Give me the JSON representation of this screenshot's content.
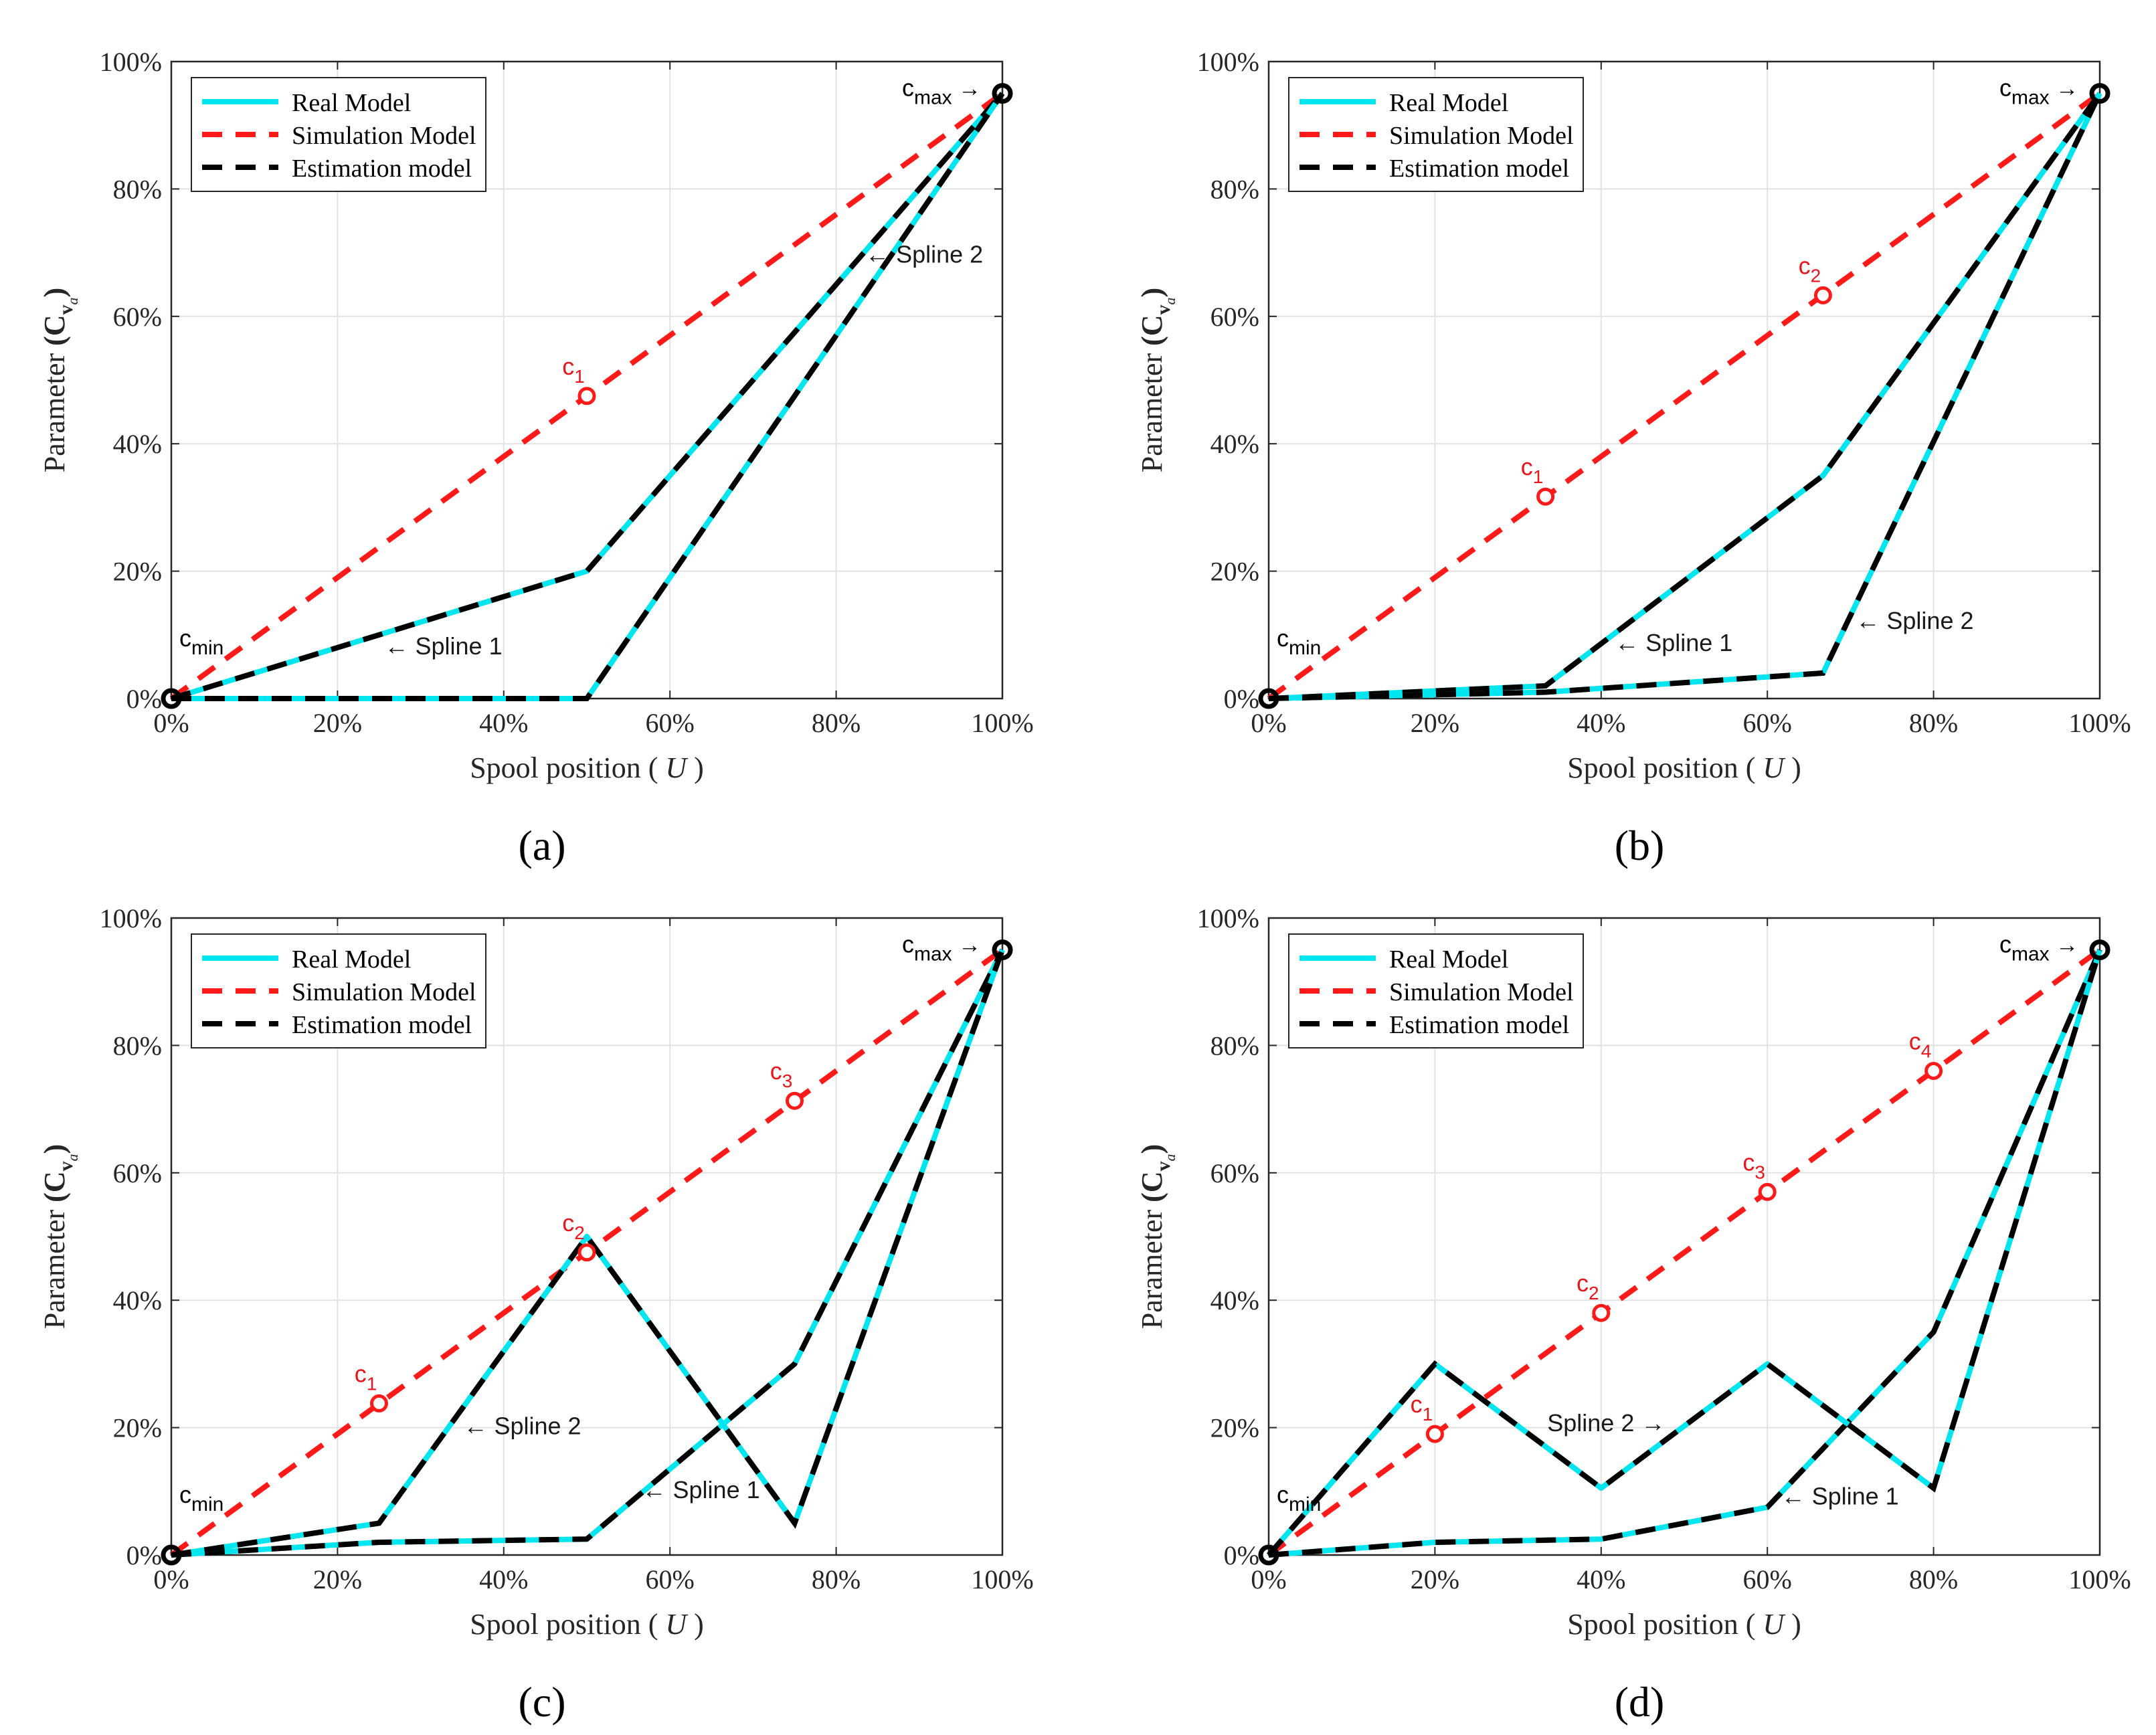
{
  "figure": {
    "colors": {
      "real": "#00e5ee",
      "simulation": "#ff1a1a",
      "estimation": "#000000",
      "grid": "#e2e2e2",
      "axis": "#262626",
      "point_label": "#e8151b"
    }
  },
  "chart_data": [
    {
      "panel": "(a)",
      "type": "line",
      "xlabel": "Spool position",
      "xlabel_var": "U",
      "ylabel": "Parameter",
      "ylabel_symbol": "(C",
      "ylabel_sub": "v",
      "ylabel_subsub": "a",
      "ylabel_close": ")",
      "xlim": [
        0,
        100
      ],
      "ylim": [
        0,
        100
      ],
      "xticks": [
        0,
        20,
        40,
        60,
        80,
        100
      ],
      "yticks": [
        0,
        20,
        40,
        60,
        80,
        100
      ],
      "tick_labels_x": [
        "0%",
        "20%",
        "40%",
        "60%",
        "80%",
        "100%"
      ],
      "tick_labels_y": [
        "0%",
        "20%",
        "40%",
        "60%",
        "80%",
        "100%"
      ],
      "grid": true,
      "legend": {
        "position": "top-left",
        "entries": [
          {
            "label": "Real Model",
            "style": "solid",
            "color": "real"
          },
          {
            "label": "Simulation Model",
            "style": "dashed",
            "color": "simulation"
          },
          {
            "label": "Estimation model",
            "style": "dashed",
            "color": "estimation"
          }
        ]
      },
      "series": [
        {
          "name": "Simulation Model",
          "x": [
            0,
            100
          ],
          "y": [
            0,
            95
          ]
        },
        {
          "name": "Spline 1",
          "x": [
            0,
            50,
            100
          ],
          "y": [
            0,
            20,
            95
          ]
        },
        {
          "name": "Spline 2",
          "x": [
            0,
            50,
            100
          ],
          "y": [
            0,
            0,
            95
          ]
        }
      ],
      "knots": [
        {
          "label": "c",
          "sub": "1",
          "x": 50,
          "y": 47.5
        }
      ],
      "endpoints": {
        "min": {
          "label": "c",
          "sub": "min",
          "x": 0,
          "y": 0
        },
        "max": {
          "label": "c",
          "sub": "max",
          "x": 100,
          "y": 95
        }
      },
      "annotations": [
        {
          "text": "Spline 1",
          "x": 25,
          "y": 8,
          "arrow": "left"
        },
        {
          "text": "Spline 2",
          "x": 83.5,
          "y": 69.5,
          "arrow": "left"
        }
      ]
    },
    {
      "panel": "(b)",
      "type": "line",
      "xlabel": "Spool position",
      "xlabel_var": "U",
      "ylabel": "Parameter",
      "ylabel_symbol": "(C",
      "ylabel_sub": "v",
      "ylabel_subsub": "a",
      "ylabel_close": ")",
      "xlim": [
        0,
        100
      ],
      "ylim": [
        0,
        100
      ],
      "xticks": [
        0,
        20,
        40,
        60,
        80,
        100
      ],
      "yticks": [
        0,
        20,
        40,
        60,
        80,
        100
      ],
      "tick_labels_x": [
        "0%",
        "20%",
        "40%",
        "60%",
        "80%",
        "100%"
      ],
      "tick_labels_y": [
        "0%",
        "20%",
        "40%",
        "60%",
        "80%",
        "100%"
      ],
      "grid": true,
      "legend": {
        "position": "top-left",
        "entries": [
          {
            "label": "Real Model",
            "style": "solid",
            "color": "real"
          },
          {
            "label": "Simulation Model",
            "style": "dashed",
            "color": "simulation"
          },
          {
            "label": "Estimation model",
            "style": "dashed",
            "color": "estimation"
          }
        ]
      },
      "series": [
        {
          "name": "Simulation Model",
          "x": [
            0,
            100
          ],
          "y": [
            0,
            95
          ]
        },
        {
          "name": "Spline 1",
          "x": [
            0,
            33.3,
            66.7,
            100
          ],
          "y": [
            0,
            2,
            35,
            95
          ]
        },
        {
          "name": "Spline 2",
          "x": [
            0,
            33.3,
            66.7,
            100
          ],
          "y": [
            0,
            1,
            4,
            95
          ]
        }
      ],
      "knots": [
        {
          "label": "c",
          "sub": "1",
          "x": 33.3,
          "y": 31.7
        },
        {
          "label": "c",
          "sub": "2",
          "x": 66.7,
          "y": 63.3
        }
      ],
      "endpoints": {
        "min": {
          "label": "c",
          "sub": "min",
          "x": 0,
          "y": 0
        },
        "max": {
          "label": "c",
          "sub": "max",
          "x": 100,
          "y": 95
        }
      },
      "annotations": [
        {
          "text": "Spline 1",
          "x": 41,
          "y": 8.5,
          "arrow": "left"
        },
        {
          "text": "Spline 2",
          "x": 70,
          "y": 12,
          "arrow": "left"
        }
      ]
    },
    {
      "panel": "(c)",
      "type": "line",
      "xlabel": "Spool position",
      "xlabel_var": "U",
      "ylabel": "Parameter",
      "ylabel_symbol": "(C",
      "ylabel_sub": "v",
      "ylabel_subsub": "a",
      "ylabel_close": ")",
      "xlim": [
        0,
        100
      ],
      "ylim": [
        0,
        100
      ],
      "xticks": [
        0,
        20,
        40,
        60,
        80,
        100
      ],
      "yticks": [
        0,
        20,
        40,
        60,
        80,
        100
      ],
      "tick_labels_x": [
        "0%",
        "20%",
        "40%",
        "60%",
        "80%",
        "100%"
      ],
      "tick_labels_y": [
        "0%",
        "20%",
        "40%",
        "60%",
        "80%",
        "100%"
      ],
      "grid": true,
      "legend": {
        "position": "top-left",
        "entries": [
          {
            "label": "Real Model",
            "style": "solid",
            "color": "real"
          },
          {
            "label": "Simulation Model",
            "style": "dashed",
            "color": "simulation"
          },
          {
            "label": "Estimation model",
            "style": "dashed",
            "color": "estimation"
          }
        ]
      },
      "series": [
        {
          "name": "Simulation Model",
          "x": [
            0,
            100
          ],
          "y": [
            0,
            95
          ]
        },
        {
          "name": "Spline 1",
          "x": [
            0,
            25,
            50,
            75,
            100
          ],
          "y": [
            0,
            2,
            2.5,
            30,
            95
          ]
        },
        {
          "name": "Spline 2",
          "x": [
            0,
            25,
            50,
            75,
            100
          ],
          "y": [
            0,
            5,
            50,
            5,
            95
          ]
        }
      ],
      "knots": [
        {
          "label": "c",
          "sub": "1",
          "x": 25,
          "y": 23.8
        },
        {
          "label": "c",
          "sub": "2",
          "x": 50,
          "y": 47.5
        },
        {
          "label": "c",
          "sub": "3",
          "x": 75,
          "y": 71.3
        }
      ],
      "endpoints": {
        "min": {
          "label": "c",
          "sub": "min",
          "x": 0,
          "y": 0
        },
        "max": {
          "label": "c",
          "sub": "max",
          "x": 100,
          "y": 95
        }
      },
      "annotations": [
        {
          "text": "Spline 1",
          "x": 56,
          "y": 10,
          "arrow": "left"
        },
        {
          "text": "Spline 2",
          "x": 34.5,
          "y": 20,
          "arrow": "left"
        }
      ]
    },
    {
      "panel": "(d)",
      "type": "line",
      "xlabel": "Spool position",
      "xlabel_var": "U",
      "ylabel": "Parameter",
      "ylabel_symbol": "(C",
      "ylabel_sub": "v",
      "ylabel_subsub": "a",
      "ylabel_close": ")",
      "xlim": [
        0,
        100
      ],
      "ylim": [
        0,
        100
      ],
      "xticks": [
        0,
        20,
        40,
        60,
        80,
        100
      ],
      "yticks": [
        0,
        20,
        40,
        60,
        80,
        100
      ],
      "tick_labels_x": [
        "0%",
        "20%",
        "40%",
        "60%",
        "80%",
        "100%"
      ],
      "tick_labels_y": [
        "0%",
        "20%",
        "40%",
        "60%",
        "80%",
        "100%"
      ],
      "grid": true,
      "legend": {
        "position": "top-left",
        "entries": [
          {
            "label": "Real Model",
            "style": "solid",
            "color": "real"
          },
          {
            "label": "Simulation Model",
            "style": "dashed",
            "color": "simulation"
          },
          {
            "label": "Estimation model",
            "style": "dashed",
            "color": "estimation"
          }
        ]
      },
      "series": [
        {
          "name": "Simulation Model",
          "x": [
            0,
            100
          ],
          "y": [
            0,
            95
          ]
        },
        {
          "name": "Spline 1",
          "x": [
            0,
            20,
            40,
            60,
            80,
            100
          ],
          "y": [
            0,
            2,
            2.5,
            7.5,
            35,
            95
          ]
        },
        {
          "name": "Spline 2",
          "x": [
            0,
            20,
            40,
            60,
            80,
            100
          ],
          "y": [
            0,
            30,
            10.5,
            30,
            10.5,
            95
          ]
        }
      ],
      "knots": [
        {
          "label": "c",
          "sub": "1",
          "x": 20,
          "y": 19
        },
        {
          "label": "c",
          "sub": "2",
          "x": 40,
          "y": 38
        },
        {
          "label": "c",
          "sub": "3",
          "x": 60,
          "y": 57
        },
        {
          "label": "c",
          "sub": "4",
          "x": 80,
          "y": 76
        }
      ],
      "endpoints": {
        "min": {
          "label": "c",
          "sub": "min",
          "x": 0,
          "y": 0
        },
        "max": {
          "label": "c",
          "sub": "max",
          "x": 100,
          "y": 95
        }
      },
      "annotations": [
        {
          "text": "Spline 1",
          "x": 61,
          "y": 9,
          "arrow": "left"
        },
        {
          "text": "Spline 2",
          "x": 48.5,
          "y": 20.5,
          "arrow": "right"
        }
      ]
    }
  ]
}
